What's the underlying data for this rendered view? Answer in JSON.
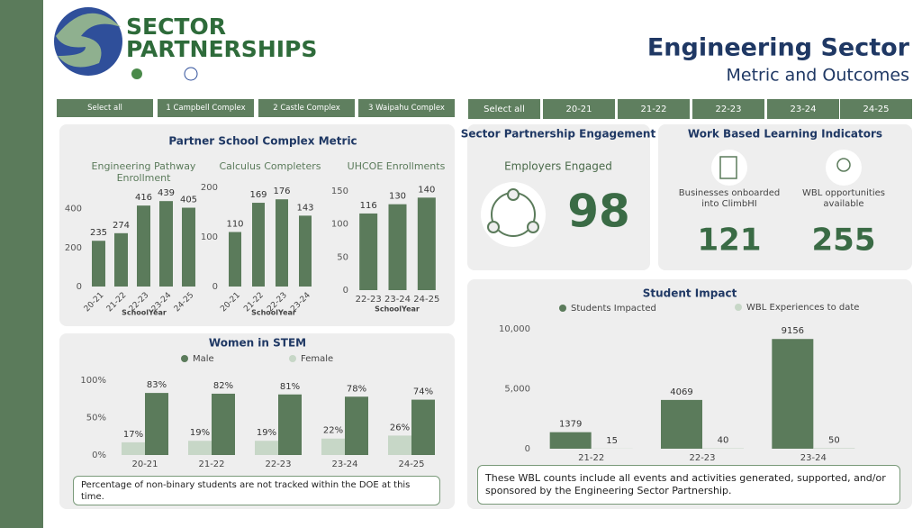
{
  "header": {
    "logo_line1": "SECTOR",
    "logo_line2": "PARTNERSHIPS",
    "title": "Engineering Sector",
    "subtitle": "Metric and Outcomes"
  },
  "filters": {
    "complex": [
      "Select all",
      "1 Campbell Complex",
      "2 Castle Complex",
      "3 Waipahu Complex"
    ],
    "year": [
      "Select all",
      "20-21",
      "21-22",
      "22-23",
      "23-24",
      "24-25"
    ]
  },
  "panels": {
    "partner_title": "Partner School Complex Metric"
  },
  "kpis": {
    "engagement": {
      "title": "Sector Partnership Engagement",
      "label": "Employers Engaged",
      "value": 98
    },
    "wbl": {
      "title": "Work Based Learning Indicators",
      "items": [
        {
          "label": "Businesses onboarded into ClimbHI",
          "value": 121
        },
        {
          "label": "WBL opportunities available",
          "value": 255
        }
      ]
    }
  },
  "chart_data": [
    {
      "type": "bar",
      "title": "Engineering Pathway Enrollment",
      "x_label": "SchoolYear",
      "categories": [
        "20-21",
        "21-22",
        "22-23",
        "23-24",
        "24-25"
      ],
      "values": [
        235,
        274,
        416,
        439,
        405
      ],
      "color": "#5b7b5b",
      "ylim": [
        0,
        500
      ],
      "yticks": [
        0,
        200,
        400
      ]
    },
    {
      "type": "bar",
      "title": "Calculus Completers",
      "x_label": "SchoolYear",
      "categories": [
        "20-21",
        "21-22",
        "22-23",
        "23-24"
      ],
      "values": [
        110,
        169,
        176,
        143
      ],
      "color": "#5b7b5b",
      "ylim": [
        0,
        200
      ],
      "yticks": [
        0,
        100,
        200
      ]
    },
    {
      "type": "bar",
      "title": "UHCOE Enrollments",
      "x_label": "SchoolYear",
      "categories": [
        "22-23",
        "23-24",
        "24-25"
      ],
      "values": [
        116,
        130,
        140
      ],
      "color": "#5b7b5b",
      "ylim": [
        0,
        150
      ],
      "yticks": [
        0,
        50,
        100,
        150
      ]
    },
    {
      "type": "bar",
      "title": "Women in STEM",
      "categories": [
        "20-21",
        "21-22",
        "22-23",
        "23-24",
        "24-25"
      ],
      "series": [
        {
          "name": "Male",
          "color": "#5b7b5b",
          "values": [
            83,
            82,
            81,
            78,
            74
          ],
          "value_labels": [
            "83%",
            "82%",
            "81%",
            "78%",
            "74%"
          ]
        },
        {
          "name": "Female",
          "color": "#c7d7c7",
          "values": [
            17,
            19,
            19,
            22,
            26
          ],
          "value_labels": [
            "17%",
            "19%",
            "19%",
            "22%",
            "26%"
          ]
        }
      ],
      "ylim": [
        0,
        100
      ],
      "yticks": [
        {
          "value": 0,
          "label": "0%"
        },
        {
          "value": 50,
          "label": "50%"
        },
        {
          "value": 100,
          "label": "100%"
        }
      ],
      "note": "Percentage of non-binary students are not tracked within the DOE at this time."
    },
    {
      "type": "bar",
      "title": "Student Impact",
      "categories": [
        "21-22",
        "22-23",
        "23-24"
      ],
      "series": [
        {
          "name": "Students Impacted",
          "color": "#5b7b5b",
          "values": [
            1379,
            4069,
            9156
          ]
        },
        {
          "name": "WBL Experiences to date",
          "color": "#c7d7c7",
          "values": [
            15,
            40,
            50
          ]
        }
      ],
      "ylim": [
        0,
        10000
      ],
      "yticks": [
        0,
        {
          "value": 5000,
          "label": "5,000"
        },
        {
          "value": 10000,
          "label": "10,000"
        }
      ],
      "note": "These WBL counts include all events and activities generated, supported, and/or sponsored by the Engineering Sector Partnership."
    }
  ]
}
